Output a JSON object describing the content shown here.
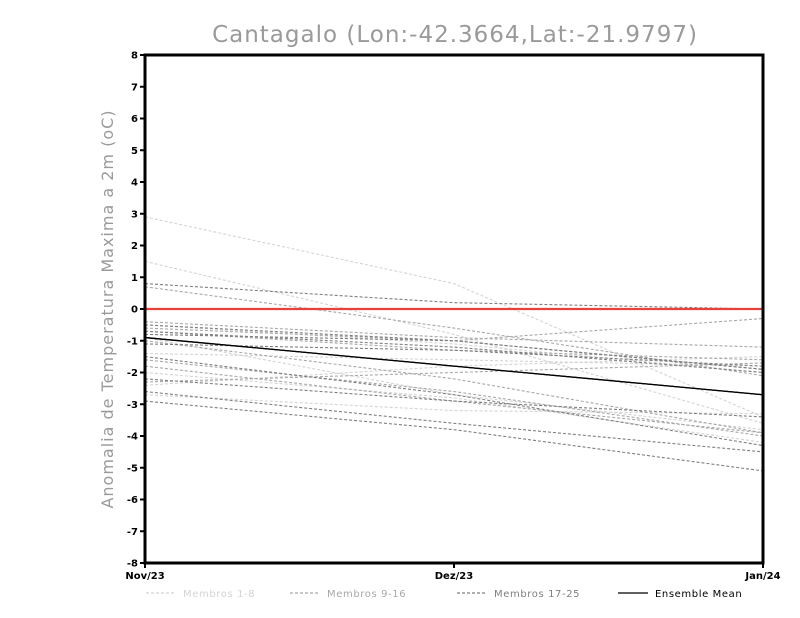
{
  "chart_data": {
    "type": "line",
    "title": "Cantagalo (Lon:-42.3664,Lat:-21.9797)",
    "ylabel": "Anomalia de Temperatura Maxima a 2m (oC)",
    "xlabel": "",
    "categories": [
      "Nov/23",
      "Dez/23",
      "Jan/24"
    ],
    "yticks": [
      "8",
      "7",
      "6",
      "5",
      "4",
      "3",
      "2",
      "1",
      "0",
      "-1",
      "-2",
      "-3",
      "-4",
      "-5",
      "-6",
      "-7",
      "-8"
    ],
    "ylim": [
      -8,
      8
    ],
    "grid": false,
    "legend_position": "bottom",
    "reference_line": {
      "y": 0,
      "color": "#e8413a"
    },
    "groups": [
      {
        "name": "Membros 1-8",
        "color": "#d4d4d4",
        "dashed": true
      },
      {
        "name": "Membros 9-16",
        "color": "#a8a8a8",
        "dashed": true
      },
      {
        "name": "Membros 17-25",
        "color": "#7f7f7f",
        "dashed": true
      },
      {
        "name": "Ensemble Mean",
        "color": "#000000",
        "dashed": false
      }
    ],
    "series": [
      {
        "group": 0,
        "values": [
          2.9,
          0.8,
          -3.4
        ]
      },
      {
        "group": 0,
        "values": [
          1.5,
          -0.8,
          -3.6
        ]
      },
      {
        "group": 0,
        "values": [
          -0.5,
          -1.1,
          -2.0
        ]
      },
      {
        "group": 0,
        "values": [
          -1.4,
          -1.6,
          -1.8
        ]
      },
      {
        "group": 0,
        "values": [
          -2.0,
          -2.8,
          -4.2
        ]
      },
      {
        "group": 0,
        "values": [
          -2.4,
          -1.8,
          -1.5
        ]
      },
      {
        "group": 0,
        "values": [
          -0.9,
          -2.7,
          -3.8
        ]
      },
      {
        "group": 0,
        "values": [
          -2.7,
          -3.2,
          -3.3
        ]
      },
      {
        "group": 1,
        "values": [
          0.7,
          -0.6,
          -2.1
        ]
      },
      {
        "group": 1,
        "values": [
          -0.4,
          -0.9,
          -1.2
        ]
      },
      {
        "group": 1,
        "values": [
          -0.6,
          -1.0,
          -0.3
        ]
      },
      {
        "group": 1,
        "values": [
          -1.0,
          -2.2,
          -3.9
        ]
      },
      {
        "group": 1,
        "values": [
          -1.6,
          -2.6,
          -4.0
        ]
      },
      {
        "group": 1,
        "values": [
          -2.3,
          -2.0,
          -1.7
        ]
      },
      {
        "group": 1,
        "values": [
          -0.7,
          -1.3,
          -1.6
        ]
      },
      {
        "group": 1,
        "values": [
          -1.8,
          -2.9,
          -3.9
        ]
      },
      {
        "group": 2,
        "values": [
          0.8,
          0.2,
          0.0
        ]
      },
      {
        "group": 2,
        "values": [
          -0.5,
          -1.0,
          -1.9
        ]
      },
      {
        "group": 2,
        "values": [
          -0.7,
          -1.2,
          -2.0
        ]
      },
      {
        "group": 2,
        "values": [
          -0.8,
          -1.0,
          -1.9
        ]
      },
      {
        "group": 2,
        "values": [
          -1.1,
          -1.3,
          -1.8
        ]
      },
      {
        "group": 2,
        "values": [
          -1.5,
          -2.7,
          -4.3
        ]
      },
      {
        "group": 2,
        "values": [
          -2.6,
          -3.6,
          -4.5
        ]
      },
      {
        "group": 2,
        "values": [
          -2.9,
          -3.8,
          -5.1
        ]
      },
      {
        "group": 2,
        "values": [
          -2.2,
          -2.9,
          -3.4
        ]
      },
      {
        "group": 3,
        "values": [
          -0.9,
          -1.8,
          -2.7
        ]
      }
    ]
  }
}
